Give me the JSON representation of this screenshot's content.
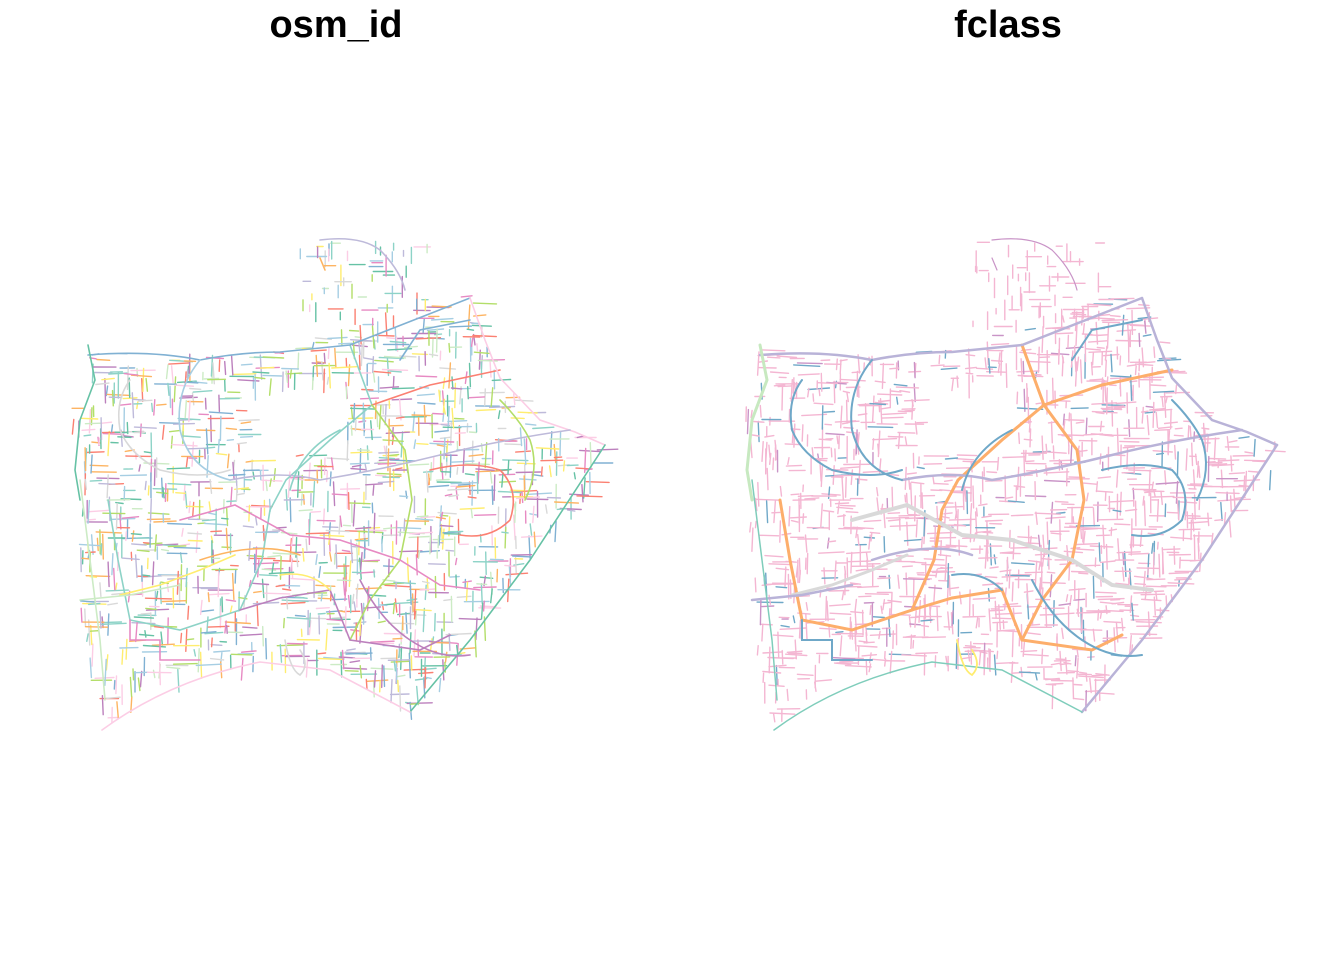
{
  "panels": [
    {
      "title": "osm_id",
      "palette": [
        "#8dd3c7",
        "#ffed6f",
        "#bebada",
        "#fb8072",
        "#80b1d3",
        "#fdb462",
        "#b3de69",
        "#fccde5",
        "#d9d9d9",
        "#bc80bd",
        "#ccebc5",
        "#a6cee3",
        "#e78ac3",
        "#66c2a5"
      ]
    },
    {
      "title": "fclass",
      "palette": {
        "residential": "#f4b6d2",
        "tertiary": "#6fa8c8",
        "secondary": "#b9b3d8",
        "primary": "#fdae6b",
        "trunk": "#d9d9d9",
        "motorway": "#7fcdbb",
        "service": "#c7e9c0",
        "footway": "#c994c7",
        "junction": "#ffed6f"
      }
    }
  ]
}
